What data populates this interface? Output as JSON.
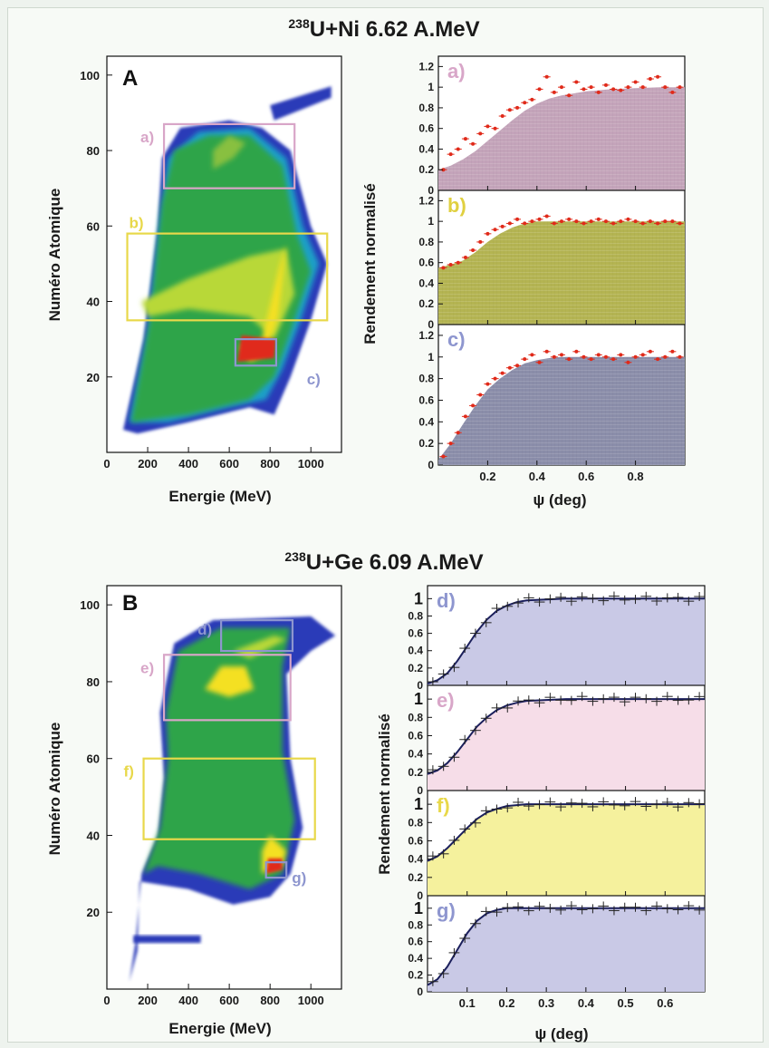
{
  "chart_data": [
    {
      "type": "heatmap",
      "title": "238U+Ni 6.62 A.MeV",
      "title_sup": "238",
      "title_rest": "U+Ni 6.62 A.MeV",
      "panel_label": "A",
      "xlabel": "Energie (MeV)",
      "ylabel": "Numéro Atomique",
      "xlim": [
        0,
        1150
      ],
      "ylim": [
        0,
        105
      ],
      "xticks": [
        0,
        200,
        400,
        600,
        800,
        1000
      ],
      "yticks": [
        20,
        40,
        60,
        80,
        100
      ],
      "regions": [
        {
          "label": "a)",
          "x": [
            280,
            920
          ],
          "y": [
            70,
            87
          ],
          "color": "#d8a6c8"
        },
        {
          "label": "b)",
          "x": [
            100,
            1080
          ],
          "y": [
            35,
            58
          ],
          "color": "#e8d84a"
        },
        {
          "label": "c)",
          "x": [
            630,
            830
          ],
          "y": [
            23,
            30
          ],
          "color": "#8e96cf"
        }
      ],
      "colors": {
        "region_a": "#d8a6c8",
        "region_b": "#e0d040",
        "region_c": "#8e96cf"
      }
    },
    {
      "type": "area",
      "ylabel": "Rendement normalisé",
      "xlabel": "ψ (deg)",
      "xlim": [
        0,
        1.0
      ],
      "xticks": [
        0.2,
        0.4,
        0.6,
        0.8
      ],
      "yticks": [
        0,
        0.2,
        0.4,
        0.6,
        0.8,
        1,
        1.2
      ],
      "panels": [
        {
          "label": "a)",
          "fill": "#c4a4ba",
          "curve": {
            "x": [
              0,
              0.05,
              0.1,
              0.15,
              0.2,
              0.25,
              0.3,
              0.35,
              0.4,
              0.45,
              0.5,
              0.6,
              0.7,
              0.8,
              0.9,
              1.0
            ],
            "y": [
              0.2,
              0.24,
              0.3,
              0.38,
              0.48,
              0.58,
              0.68,
              0.77,
              0.84,
              0.89,
              0.92,
              0.96,
              0.98,
              0.99,
              1.0,
              1.0
            ]
          },
          "points": {
            "x": [
              0.02,
              0.05,
              0.08,
              0.11,
              0.14,
              0.17,
              0.2,
              0.23,
              0.26,
              0.29,
              0.32,
              0.35,
              0.38,
              0.41,
              0.44,
              0.47,
              0.5,
              0.53,
              0.56,
              0.59,
              0.62,
              0.65,
              0.68,
              0.71,
              0.74,
              0.77,
              0.8,
              0.83,
              0.86,
              0.89,
              0.92,
              0.95,
              0.98
            ],
            "y": [
              0.2,
              0.35,
              0.4,
              0.5,
              0.45,
              0.55,
              0.62,
              0.6,
              0.72,
              0.78,
              0.8,
              0.85,
              0.88,
              0.98,
              1.1,
              0.95,
              1.0,
              0.92,
              1.05,
              0.98,
              1.0,
              0.95,
              1.02,
              0.98,
              0.97,
              1.0,
              1.05,
              1.0,
              1.08,
              1.1,
              1.0,
              0.95,
              1.0
            ]
          }
        },
        {
          "label": "b)",
          "fill": "#b4b452",
          "curve": {
            "x": [
              0,
              0.05,
              0.1,
              0.15,
              0.2,
              0.25,
              0.3,
              0.35,
              0.4,
              0.5,
              0.6,
              0.7,
              0.8,
              0.9,
              1.0
            ],
            "y": [
              0.55,
              0.58,
              0.62,
              0.7,
              0.8,
              0.88,
              0.94,
              0.98,
              1.0,
              1.0,
              1.0,
              1.0,
              1.0,
              1.0,
              1.0
            ]
          },
          "points": {
            "x": [
              0.02,
              0.05,
              0.08,
              0.11,
              0.14,
              0.17,
              0.2,
              0.23,
              0.26,
              0.29,
              0.32,
              0.35,
              0.38,
              0.41,
              0.44,
              0.47,
              0.5,
              0.53,
              0.56,
              0.59,
              0.62,
              0.65,
              0.68,
              0.71,
              0.74,
              0.77,
              0.8,
              0.83,
              0.86,
              0.89,
              0.92,
              0.95,
              0.98
            ],
            "y": [
              0.55,
              0.58,
              0.6,
              0.65,
              0.72,
              0.8,
              0.88,
              0.92,
              0.95,
              0.98,
              1.02,
              0.98,
              1.0,
              1.02,
              1.05,
              0.98,
              1.0,
              1.02,
              1.0,
              0.98,
              1.0,
              1.02,
              1.0,
              0.98,
              1.0,
              1.02,
              1.0,
              0.98,
              1.0,
              0.98,
              1.0,
              1.0,
              0.98
            ]
          }
        },
        {
          "label": "c)",
          "fill": "#8b8eaa",
          "curve": {
            "x": [
              0,
              0.05,
              0.1,
              0.15,
              0.2,
              0.25,
              0.3,
              0.35,
              0.4,
              0.45,
              0.5,
              0.6,
              0.7,
              0.8,
              0.9,
              1.0
            ],
            "y": [
              0.05,
              0.2,
              0.38,
              0.55,
              0.7,
              0.8,
              0.88,
              0.94,
              0.97,
              0.99,
              1.0,
              1.0,
              1.0,
              1.0,
              1.0,
              1.0
            ]
          },
          "points": {
            "x": [
              0.02,
              0.05,
              0.08,
              0.11,
              0.14,
              0.17,
              0.2,
              0.23,
              0.26,
              0.29,
              0.32,
              0.35,
              0.38,
              0.41,
              0.44,
              0.47,
              0.5,
              0.53,
              0.56,
              0.59,
              0.62,
              0.65,
              0.68,
              0.71,
              0.74,
              0.77,
              0.8,
              0.83,
              0.86,
              0.89,
              0.92,
              0.95,
              0.98
            ],
            "y": [
              0.08,
              0.2,
              0.3,
              0.45,
              0.55,
              0.65,
              0.75,
              0.8,
              0.85,
              0.9,
              0.92,
              0.98,
              1.02,
              0.95,
              1.05,
              1.0,
              1.02,
              0.98,
              1.05,
              1.0,
              0.98,
              1.02,
              1.0,
              0.98,
              1.02,
              0.95,
              1.0,
              1.02,
              1.05,
              0.98,
              1.0,
              1.05,
              1.0
            ]
          }
        }
      ]
    },
    {
      "type": "heatmap",
      "title": "238U+Ge 6.09 A.MeV",
      "title_sup": "238",
      "title_rest": "U+Ge 6.09 A.MeV",
      "panel_label": "B",
      "xlabel": "Energie (MeV)",
      "ylabel": "Numéro Atomique",
      "xlim": [
        0,
        1150
      ],
      "ylim": [
        0,
        105
      ],
      "xticks": [
        0,
        200,
        400,
        600,
        800,
        1000
      ],
      "yticks": [
        20,
        40,
        60,
        80,
        100
      ],
      "regions": [
        {
          "label": "d)",
          "x": [
            560,
            910
          ],
          "y": [
            88,
            96
          ],
          "color": "#8e96cf"
        },
        {
          "label": "e)",
          "x": [
            280,
            900
          ],
          "y": [
            70,
            87
          ],
          "color": "#d8a6c8"
        },
        {
          "label": "f)",
          "x": [
            180,
            1020
          ],
          "y": [
            39,
            60
          ],
          "color": "#e8d84a"
        },
        {
          "label": "g)",
          "x": [
            780,
            880
          ],
          "y": [
            29,
            33
          ],
          "color": "#8e96cf"
        }
      ]
    },
    {
      "type": "area",
      "ylabel": "Rendement normalisé",
      "xlabel": "ψ (deg)",
      "xlim": [
        0,
        0.7
      ],
      "xticks": [
        0.1,
        0.2,
        0.3,
        0.4,
        0.5,
        0.6
      ],
      "yticks": [
        0,
        0.2,
        0.4,
        0.6,
        0.8,
        1
      ],
      "panels": [
        {
          "label": "d)",
          "fill": "#c9c9e6",
          "line": "#1b1f5c",
          "label_color": "#8e96cf",
          "curve": {
            "x": [
              0,
              0.025,
              0.05,
              0.075,
              0.1,
              0.125,
              0.15,
              0.175,
              0.2,
              0.225,
              0.25,
              0.3,
              0.35,
              0.4,
              0.5,
              0.6,
              0.7
            ],
            "y": [
              0.02,
              0.06,
              0.14,
              0.28,
              0.45,
              0.62,
              0.76,
              0.86,
              0.92,
              0.96,
              0.98,
              0.99,
              1.0,
              1.0,
              1.0,
              1.0,
              1.0
            ]
          }
        },
        {
          "label": "e)",
          "fill": "#f6dde8",
          "line": "#1b1f5c",
          "label_color": "#d8a6c8",
          "curve": {
            "x": [
              0,
              0.025,
              0.05,
              0.075,
              0.1,
              0.125,
              0.15,
              0.175,
              0.2,
              0.225,
              0.25,
              0.3,
              0.35,
              0.4,
              0.5,
              0.6,
              0.7
            ],
            "y": [
              0.18,
              0.22,
              0.3,
              0.42,
              0.56,
              0.7,
              0.8,
              0.88,
              0.93,
              0.96,
              0.98,
              0.99,
              1.0,
              1.0,
              1.0,
              1.0,
              1.0
            ]
          }
        },
        {
          "label": "f)",
          "fill": "#f5f19d",
          "line": "#1b1f5c",
          "label_color": "#e8d84a",
          "curve": {
            "x": [
              0,
              0.025,
              0.05,
              0.075,
              0.1,
              0.125,
              0.15,
              0.175,
              0.2,
              0.225,
              0.25,
              0.3,
              0.35,
              0.4,
              0.5,
              0.6,
              0.7
            ],
            "y": [
              0.38,
              0.43,
              0.52,
              0.63,
              0.74,
              0.84,
              0.91,
              0.95,
              0.98,
              0.99,
              1.0,
              1.0,
              1.0,
              1.0,
              1.0,
              1.0,
              1.0
            ]
          }
        },
        {
          "label": "g)",
          "fill": "#c9c9e6",
          "line": "#1b1f5c",
          "label_color": "#8e96cf",
          "curve": {
            "x": [
              0,
              0.025,
              0.05,
              0.075,
              0.1,
              0.125,
              0.15,
              0.175,
              0.2,
              0.225,
              0.25,
              0.3,
              0.35,
              0.4,
              0.5,
              0.6,
              0.7
            ],
            "y": [
              0.08,
              0.15,
              0.3,
              0.5,
              0.7,
              0.85,
              0.94,
              0.98,
              1.0,
              1.0,
              1.0,
              1.0,
              1.0,
              1.0,
              1.0,
              1.0,
              1.0
            ]
          }
        }
      ]
    }
  ]
}
